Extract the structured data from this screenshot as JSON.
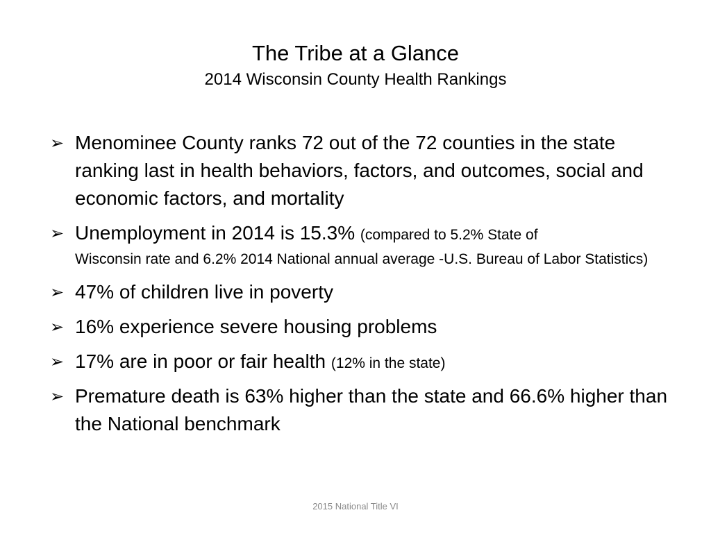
{
  "slide": {
    "title": "The Tribe at a Glance",
    "subtitle": "2014 Wisconsin County Health Rankings",
    "bullet_glyph": "➢",
    "bullets": [
      {
        "main": "Menominee County ranks 72 out of the 72 counties in the state ranking last in health behaviors, factors, and outcomes, social and economic factors, and mortality"
      },
      {
        "main": "Unemployment in 2014 is 15.3%",
        "note_inline": "(compared to 5.2% State of",
        "note_rest": "Wisconsin rate and 6.2% 2014 National annual average -U.S. Bureau of Labor Statistics)"
      },
      {
        "main": "47% of children live in poverty"
      },
      {
        "main": "16% experience severe housing problems"
      },
      {
        "main": "17% are in poor or fair health",
        "note_inline": "(12% in the state)"
      },
      {
        "main": "Premature death is 63% higher than the state and 66.6% higher than the National benchmark"
      }
    ],
    "footer": "2015 National Title VI",
    "colors": {
      "text": "#000000",
      "footer": "#8a8a8a",
      "background": "#ffffff"
    }
  }
}
